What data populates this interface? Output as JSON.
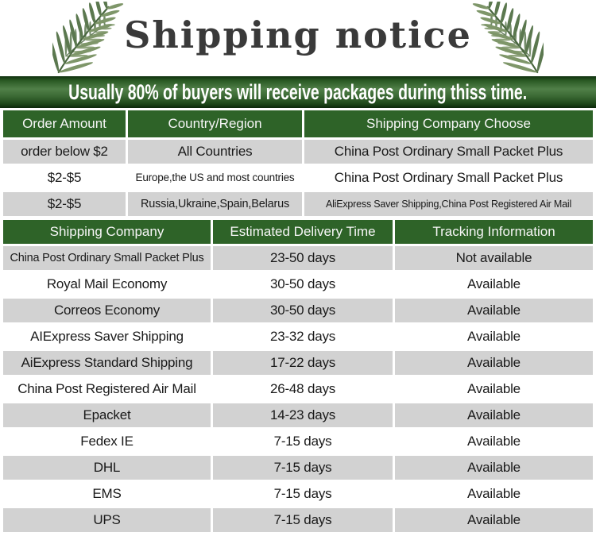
{
  "title": "Shipping notice",
  "banner": {
    "text": "Usually 80% of buyers will receive packages during thiss time."
  },
  "icons": {
    "left_leaf": "fern-leaf",
    "right_leaf": "fern-leaf"
  },
  "colors": {
    "header_green": "#2e6328",
    "banner_green_light": "#507f48",
    "banner_green_dark": "#0c280a",
    "row_gray": "#d2d2d2",
    "row_white": "#ffffff",
    "text_dark": "#1a1a1a",
    "title_gray": "#3a3a3a",
    "leaf_green": "#7e9669"
  },
  "table1": {
    "headers": [
      "Order Amount",
      "Country/Region",
      "Shipping Company Choose"
    ],
    "rows": [
      [
        "order below $2",
        "All Countries",
        "China Post Ordinary Small Packet Plus"
      ],
      [
        "$2-$5",
        "Europe,the US and most countries",
        "China Post Ordinary Small Packet Plus"
      ],
      [
        "$2-$5",
        "Russia,Ukraine,Spain,Belarus",
        "AliExpress Saver Shipping,China Post Registered Air Mail"
      ]
    ]
  },
  "table2": {
    "headers": [
      "Shipping Company",
      "Estimated Delivery Time",
      "Tracking Information"
    ],
    "rows": [
      [
        "China Post Ordinary Small Packet Plus",
        "23-50 days",
        "Not available"
      ],
      [
        "Royal Mail Economy",
        "30-50 days",
        "Available"
      ],
      [
        "Correos Economy",
        "30-50 days",
        "Available"
      ],
      [
        "AIExpress Saver Shipping",
        "23-32 days",
        "Available"
      ],
      [
        "AiExpress Standard Shipping",
        "17-22 days",
        "Available"
      ],
      [
        "China Post Registered Air Mail",
        "26-48 days",
        "Available"
      ],
      [
        "Epacket",
        "14-23 days",
        "Available"
      ],
      [
        "Fedex IE",
        "7-15 days",
        "Available"
      ],
      [
        "DHL",
        "7-15 days",
        "Available"
      ],
      [
        "EMS",
        "7-15 days",
        "Available"
      ],
      [
        "UPS",
        "7-15 days",
        "Available"
      ]
    ]
  }
}
